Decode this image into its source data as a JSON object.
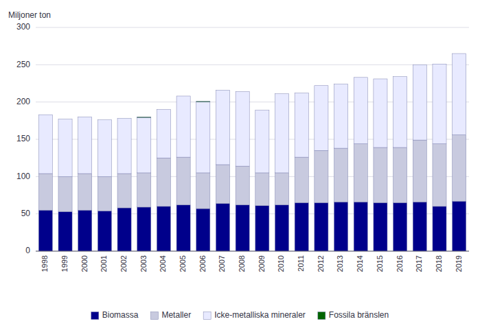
{
  "chart_data": {
    "type": "bar",
    "stacked": true,
    "y_label": "Miljoner ton",
    "categories": [
      "1998",
      "1999",
      "2000",
      "2001",
      "2002",
      "2003",
      "2004",
      "2005",
      "2006",
      "2007",
      "2008",
      "2009",
      "2010",
      "2011",
      "2012",
      "2013",
      "2014",
      "2015",
      "2016",
      "2017",
      "2018",
      "2019"
    ],
    "series": [
      {
        "name": "Biomassa",
        "color": "#00008B",
        "values": [
          55,
          53,
          55,
          54,
          58,
          59,
          60,
          62,
          57,
          64,
          62,
          61,
          62,
          65,
          65,
          66,
          66,
          65,
          65,
          66,
          60,
          67
        ]
      },
      {
        "name": "Metaller",
        "color": "#C8CADF",
        "values": [
          49,
          47,
          49,
          46,
          46,
          46,
          65,
          64,
          48,
          52,
          52,
          44,
          43,
          61,
          70,
          72,
          78,
          74,
          74,
          83,
          84,
          89
        ]
      },
      {
        "name": "Icke-metalliska mineraler",
        "color": "#E8EAFF",
        "values": [
          79,
          77,
          76,
          76,
          74,
          74,
          65,
          82,
          95,
          100,
          100,
          84,
          106,
          86,
          87,
          86,
          89,
          92,
          95,
          101,
          107,
          109
        ]
      },
      {
        "name": "Fossila bränslen",
        "color": "#006400",
        "values": [
          0,
          0,
          0,
          0,
          0,
          1,
          0,
          0,
          1,
          0,
          0,
          0,
          0,
          0,
          0,
          0,
          0,
          0,
          0,
          0,
          0,
          0
        ]
      }
    ],
    "ylim": [
      0,
      300
    ],
    "yticks": [
      0,
      50,
      100,
      150,
      200,
      250,
      300
    ],
    "grid": true,
    "legend": "bottom"
  }
}
